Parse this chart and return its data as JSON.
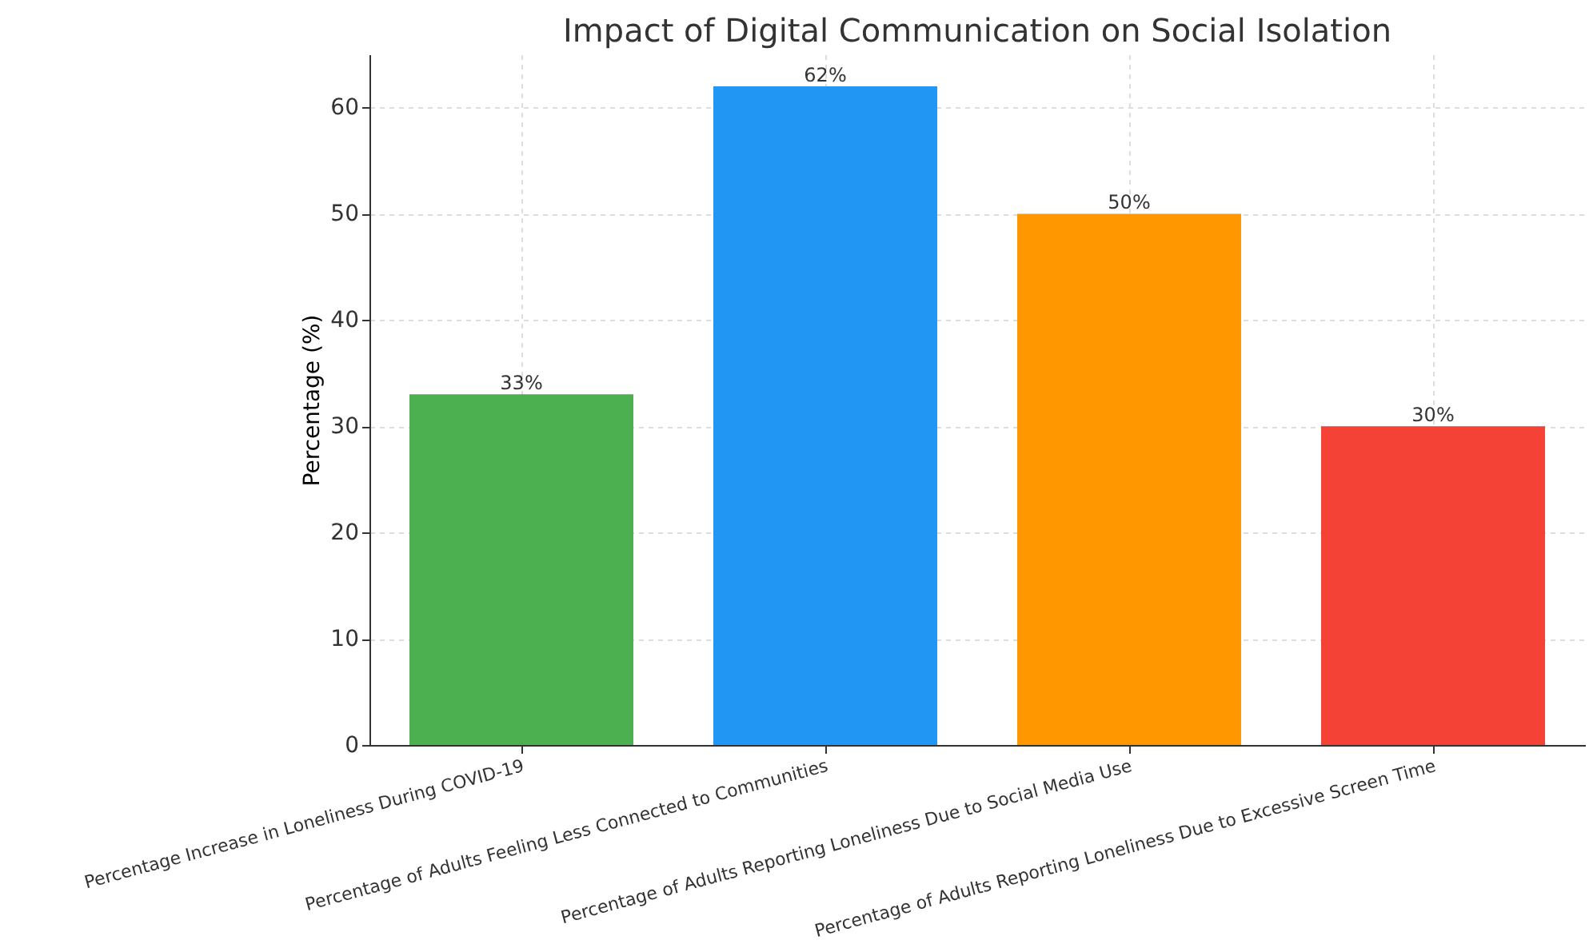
{
  "chart_data": {
    "type": "bar",
    "title": "Impact of Digital Communication on Social Isolation",
    "ylabel": "Percentage (%)",
    "categories": [
      "Percentage Increase in Loneliness During COVID-19",
      "Percentage of Adults Feeling Less Connected to Communities",
      "Percentage of Adults Reporting Loneliness Due to Social Media Use",
      "Percentage of Adults Reporting Loneliness Due to Excessive Screen Time"
    ],
    "values": [
      33,
      62,
      50,
      30
    ],
    "colors": [
      "#4caf50",
      "#2196f3",
      "#ff9800",
      "#f44336"
    ],
    "value_labels": [
      "33%",
      "62%",
      "50%",
      "30%"
    ],
    "ylim": [
      0,
      65
    ],
    "yticks": [
      0,
      10,
      20,
      30,
      40,
      50,
      60
    ],
    "grid": true,
    "legend": false
  }
}
